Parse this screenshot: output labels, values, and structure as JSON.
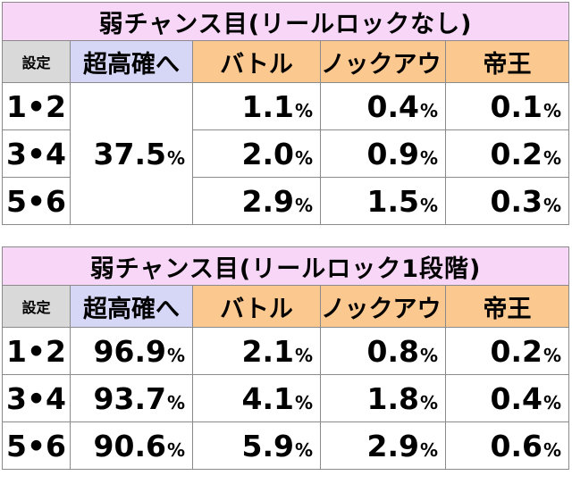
{
  "table1": {
    "title": "弱チャンス目(リールロックなし)",
    "headers": {
      "setting": "設定",
      "super": "超高確へ",
      "battle": "バトル",
      "knockout": "ノックアウト",
      "emperor": "帝王"
    },
    "super_value": "37.5",
    "rows": [
      {
        "setting": "1•2",
        "battle": "1.1",
        "knockout": "0.4",
        "emperor": "0.1"
      },
      {
        "setting": "3•4",
        "battle": "2.0",
        "knockout": "0.9",
        "emperor": "0.2"
      },
      {
        "setting": "5•6",
        "battle": "2.9",
        "knockout": "1.5",
        "emperor": "0.3"
      }
    ]
  },
  "table2": {
    "title": "弱チャンス目(リールロック1段階)",
    "headers": {
      "setting": "設定",
      "super": "超高確へ",
      "battle": "バトル",
      "knockout": "ノックアウト",
      "emperor": "帝王"
    },
    "rows": [
      {
        "setting": "1•2",
        "super": "96.9",
        "battle": "2.1",
        "knockout": "0.8",
        "emperor": "0.2"
      },
      {
        "setting": "3•4",
        "super": "93.7",
        "battle": "4.1",
        "knockout": "1.8",
        "emperor": "0.4"
      },
      {
        "setting": "5•6",
        "super": "90.6",
        "battle": "5.9",
        "knockout": "2.9",
        "emperor": "0.6"
      }
    ]
  },
  "unit": "%",
  "colors": {
    "title_bg": "#f7d6f7",
    "setting_header_bg": "#d9d9d9",
    "super_header_bg": "#d6d6f7",
    "mode_header_bg": "#fbc88f",
    "border": "#8a8a8a"
  }
}
